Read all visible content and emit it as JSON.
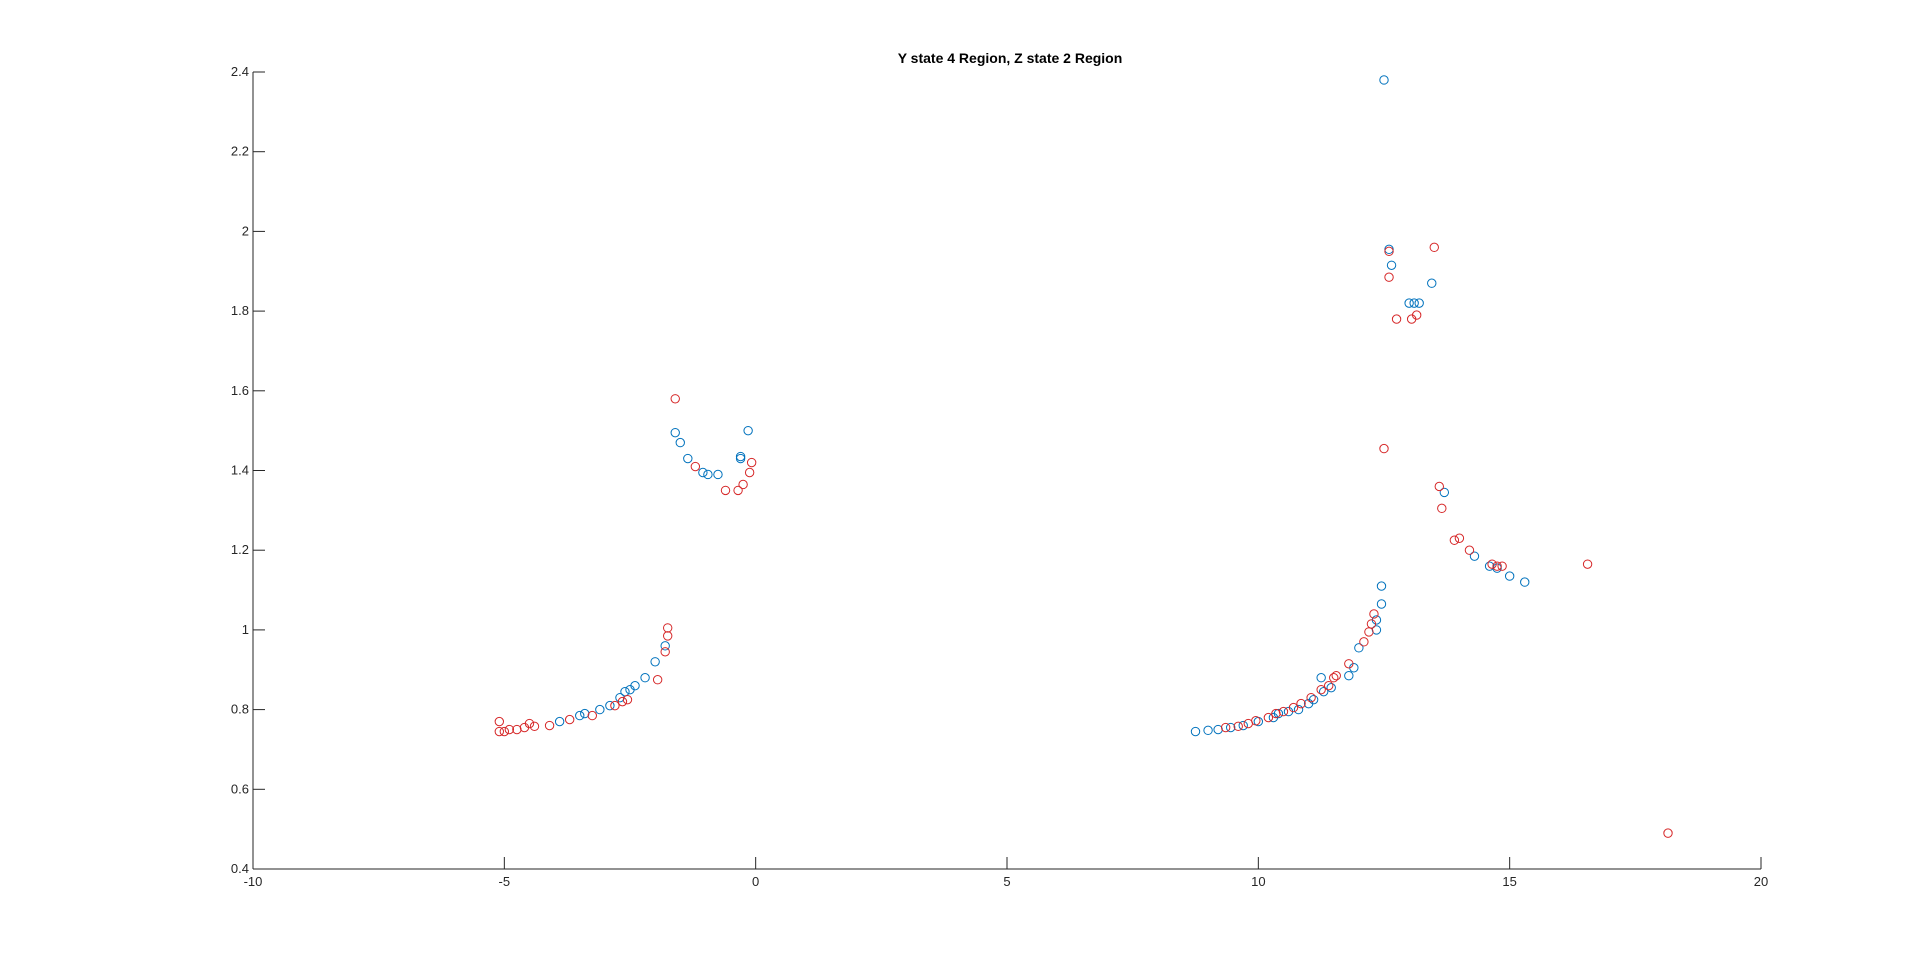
{
  "chart_data": {
    "type": "scatter",
    "title": "Y state 4 Region, Z state 2 Region",
    "xlabel": "",
    "ylabel": "",
    "xlim": [
      -10,
      20
    ],
    "ylim": [
      0.4,
      2.4
    ],
    "xticks": [
      -10,
      -5,
      0,
      5,
      10,
      15,
      20
    ],
    "xtick_labels": [
      "-10",
      "-5",
      "0",
      "5",
      "10",
      "15",
      "20"
    ],
    "yticks": [
      0.4,
      0.6,
      0.8,
      1.0,
      1.2,
      1.4,
      1.6,
      1.8,
      2.0,
      2.2,
      2.4
    ],
    "ytick_labels": [
      "0.4",
      "0.6",
      "0.8",
      "1",
      "1.2",
      "1.4",
      "1.6",
      "1.8",
      "2",
      "2.2",
      "2.4"
    ],
    "grid": false,
    "legend": null,
    "marker": "open-circle",
    "series": [
      {
        "color": "#0072BD",
        "points": [
          [
            -3.9,
            0.77
          ],
          [
            -3.5,
            0.785
          ],
          [
            -3.4,
            0.79
          ],
          [
            -3.1,
            0.8
          ],
          [
            -2.9,
            0.81
          ],
          [
            -2.7,
            0.83
          ],
          [
            -2.6,
            0.845
          ],
          [
            -2.5,
            0.85
          ],
          [
            -2.4,
            0.86
          ],
          [
            -2.2,
            0.88
          ],
          [
            -2.0,
            0.92
          ],
          [
            -1.8,
            0.96
          ],
          [
            -1.6,
            1.495
          ],
          [
            -1.5,
            1.47
          ],
          [
            -1.35,
            1.43
          ],
          [
            -1.05,
            1.395
          ],
          [
            -0.95,
            1.39
          ],
          [
            -0.75,
            1.39
          ],
          [
            -0.3,
            1.435
          ],
          [
            -0.3,
            1.43
          ],
          [
            -0.15,
            1.5
          ],
          [
            8.75,
            0.745
          ],
          [
            9.0,
            0.748
          ],
          [
            9.2,
            0.75
          ],
          [
            9.45,
            0.755
          ],
          [
            9.7,
            0.76
          ],
          [
            10.0,
            0.77
          ],
          [
            10.3,
            0.78
          ],
          [
            10.4,
            0.79
          ],
          [
            10.6,
            0.795
          ],
          [
            10.8,
            0.8
          ],
          [
            11.0,
            0.815
          ],
          [
            11.1,
            0.825
          ],
          [
            11.3,
            0.845
          ],
          [
            11.45,
            0.855
          ],
          [
            11.25,
            0.88
          ],
          [
            11.8,
            0.885
          ],
          [
            11.9,
            0.905
          ],
          [
            12.0,
            0.955
          ],
          [
            12.35,
            1.0
          ],
          [
            12.35,
            1.025
          ],
          [
            12.45,
            1.065
          ],
          [
            12.45,
            1.11
          ],
          [
            12.5,
            2.38
          ],
          [
            12.6,
            1.955
          ],
          [
            12.65,
            1.915
          ],
          [
            13.0,
            1.82
          ],
          [
            13.1,
            1.82
          ],
          [
            13.2,
            1.82
          ],
          [
            13.45,
            1.87
          ],
          [
            13.7,
            1.345
          ],
          [
            14.3,
            1.185
          ],
          [
            14.6,
            1.16
          ],
          [
            14.75,
            1.155
          ],
          [
            15.0,
            1.135
          ],
          [
            15.3,
            1.12
          ]
        ]
      },
      {
        "color": "#D62728",
        "points": [
          [
            -5.1,
            0.77
          ],
          [
            -5.1,
            0.745
          ],
          [
            -5.0,
            0.745
          ],
          [
            -4.9,
            0.75
          ],
          [
            -4.75,
            0.75
          ],
          [
            -4.6,
            0.755
          ],
          [
            -4.5,
            0.765
          ],
          [
            -4.4,
            0.758
          ],
          [
            -4.1,
            0.76
          ],
          [
            -3.7,
            0.775
          ],
          [
            -3.25,
            0.785
          ],
          [
            -2.8,
            0.81
          ],
          [
            -2.65,
            0.82
          ],
          [
            -2.55,
            0.825
          ],
          [
            -1.95,
            0.875
          ],
          [
            -1.8,
            0.945
          ],
          [
            -1.75,
            0.985
          ],
          [
            -1.75,
            1.005
          ],
          [
            -1.6,
            1.58
          ],
          [
            -1.2,
            1.41
          ],
          [
            -0.6,
            1.35
          ],
          [
            -0.35,
            1.35
          ],
          [
            -0.25,
            1.365
          ],
          [
            -0.12,
            1.395
          ],
          [
            -0.08,
            1.42
          ],
          [
            9.35,
            0.755
          ],
          [
            9.6,
            0.758
          ],
          [
            9.8,
            0.765
          ],
          [
            9.95,
            0.772
          ],
          [
            10.2,
            0.78
          ],
          [
            10.35,
            0.79
          ],
          [
            10.5,
            0.795
          ],
          [
            10.7,
            0.805
          ],
          [
            10.85,
            0.815
          ],
          [
            11.05,
            0.83
          ],
          [
            11.25,
            0.85
          ],
          [
            11.4,
            0.86
          ],
          [
            11.5,
            0.88
          ],
          [
            11.55,
            0.885
          ],
          [
            11.8,
            0.915
          ],
          [
            12.1,
            0.97
          ],
          [
            12.2,
            0.995
          ],
          [
            12.25,
            1.015
          ],
          [
            12.3,
            1.04
          ],
          [
            12.5,
            1.455
          ],
          [
            12.6,
            1.885
          ],
          [
            12.6,
            1.95
          ],
          [
            12.75,
            1.78
          ],
          [
            13.05,
            1.78
          ],
          [
            13.15,
            1.79
          ],
          [
            13.5,
            1.96
          ],
          [
            13.6,
            1.36
          ],
          [
            13.65,
            1.305
          ],
          [
            13.9,
            1.225
          ],
          [
            14.0,
            1.23
          ],
          [
            14.2,
            1.2
          ],
          [
            14.65,
            1.165
          ],
          [
            14.75,
            1.16
          ],
          [
            14.85,
            1.16
          ],
          [
            16.55,
            1.165
          ],
          [
            18.15,
            0.49
          ]
        ]
      }
    ]
  }
}
